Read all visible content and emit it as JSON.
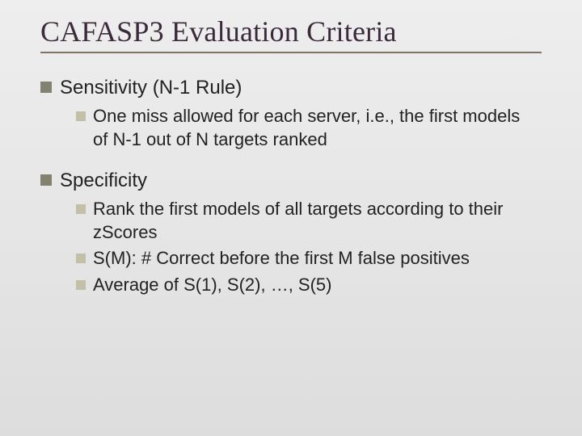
{
  "slide": {
    "title": "CAFASP3 Evaluation Criteria",
    "title_color": "#3c2a3c",
    "title_fontsize": 36,
    "underline_color": "#7e7466",
    "bullet_l1_color": "#83816f",
    "bullet_l2_color": "#c4bfa9",
    "body_color": "#222222",
    "l1_fontsize": 24,
    "l2_fontsize": 22,
    "background_gradient": [
      "#eeeeee",
      "#dddddd"
    ],
    "items": [
      {
        "label": "Sensitivity (N-1 Rule)",
        "children": [
          {
            "label": "One miss allowed for each server, i.e., the first models of N-1 out of N targets ranked"
          }
        ]
      },
      {
        "label": "Specificity",
        "children": [
          {
            "label": "Rank the first models of all targets according to their zScores"
          },
          {
            "label": "S(M): # Correct before the first M false positives"
          },
          {
            "label": "Average of S(1), S(2), …, S(5)"
          }
        ]
      }
    ]
  }
}
